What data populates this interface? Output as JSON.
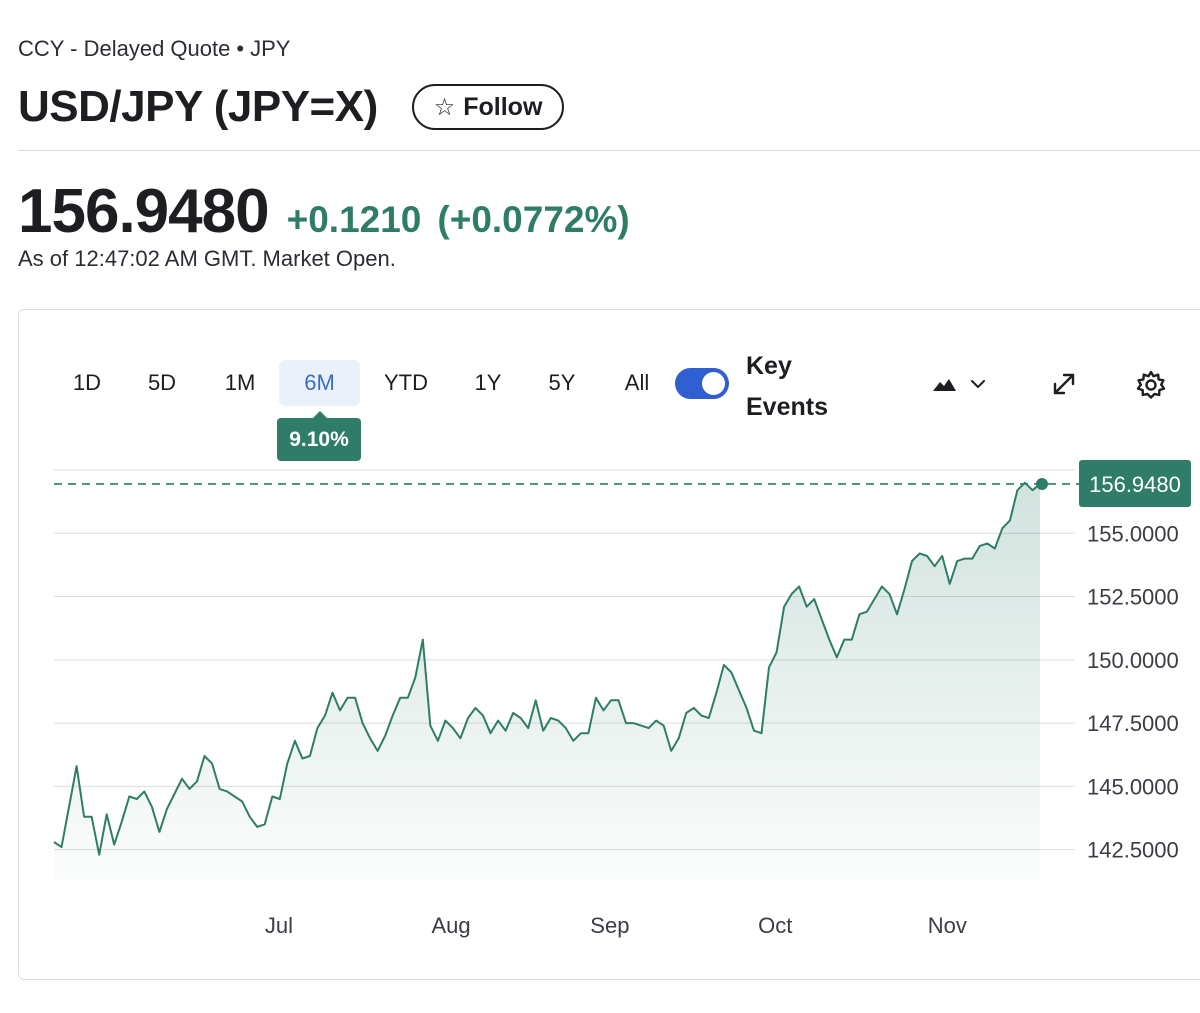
{
  "header": {
    "exchange": "CCY - Delayed Quote",
    "separator": "•",
    "currency": "JPY",
    "title": "USD/JPY (JPY=X)",
    "follow_label": "Follow",
    "follow_icon": "star-outline-icon"
  },
  "quote": {
    "price": "156.9480",
    "change": "+0.1210",
    "change_percent": "(+0.0772%)",
    "as_of": "As of 12:47:02 AM GMT. Market Open."
  },
  "chart_controls": {
    "ranges": [
      "1D",
      "5D",
      "1M",
      "6M",
      "YTD",
      "1Y",
      "5Y",
      "All"
    ],
    "active_range": "6M",
    "range_change": "9.10%",
    "key_events_label": "Key Events",
    "key_events_on": true,
    "icons": [
      "mountain-chart-icon",
      "chevron-down-icon",
      "expand-icon",
      "gear-icon"
    ]
  },
  "colors": {
    "accent_green": "#2f7d68",
    "active_tab_bg": "#eaf1fb",
    "active_tab_text": "#3b6ec2",
    "toggle_blue": "#2f5fd0"
  },
  "chart_data": {
    "type": "area",
    "title": "",
    "xlabel": "",
    "ylabel": "",
    "x_tick_labels": [
      "Jul",
      "Aug",
      "Sep",
      "Oct",
      "Nov"
    ],
    "x_tick_positions": [
      34,
      60,
      84,
      109,
      135
    ],
    "y_ticks": [
      142.5,
      145.0,
      147.5,
      150.0,
      152.5,
      155.0
    ],
    "y_tick_labels": [
      "142.5000",
      "145.0000",
      "147.5000",
      "150.0000",
      "152.5000",
      "155.0000"
    ],
    "ylim": [
      141.3,
      157.5
    ],
    "x_range": [
      0,
      149
    ],
    "grid": true,
    "current_value": 156.948,
    "current_label": "156.9480",
    "values": [
      142.8,
      142.6,
      144.2,
      145.8,
      143.8,
      143.8,
      142.3,
      143.9,
      142.7,
      143.6,
      144.6,
      144.5,
      144.8,
      144.2,
      143.2,
      144.1,
      144.7,
      145.3,
      144.9,
      145.2,
      146.2,
      145.9,
      144.9,
      144.8,
      144.6,
      144.4,
      143.8,
      143.4,
      143.5,
      144.6,
      144.5,
      145.9,
      146.8,
      146.1,
      146.2,
      147.3,
      147.8,
      148.7,
      148.0,
      148.5,
      148.5,
      147.5,
      146.9,
      146.4,
      147.0,
      147.8,
      148.5,
      148.5,
      149.3,
      150.8,
      147.4,
      146.8,
      147.6,
      147.3,
      146.9,
      147.7,
      148.1,
      147.8,
      147.1,
      147.6,
      147.2,
      147.9,
      147.7,
      147.3,
      148.4,
      147.2,
      147.7,
      147.6,
      147.3,
      146.8,
      147.1,
      147.1,
      148.5,
      148.0,
      148.4,
      148.4,
      147.5,
      147.5,
      147.4,
      147.3,
      147.6,
      147.4,
      146.4,
      146.9,
      147.9,
      148.1,
      147.8,
      147.7,
      148.7,
      149.8,
      149.5,
      148.8,
      148.1,
      147.2,
      147.1,
      149.7,
      150.3,
      152.1,
      152.6,
      152.9,
      152.1,
      152.4,
      151.6,
      150.8,
      150.1,
      150.8,
      150.8,
      151.8,
      151.9,
      152.4,
      152.9,
      152.6,
      151.8,
      152.8,
      153.9,
      154.2,
      154.1,
      153.7,
      154.1,
      153.0,
      153.9,
      154.0,
      154.0,
      154.5,
      154.6,
      154.4,
      155.2,
      155.5,
      156.7,
      157.0,
      156.7,
      156.948
    ]
  }
}
